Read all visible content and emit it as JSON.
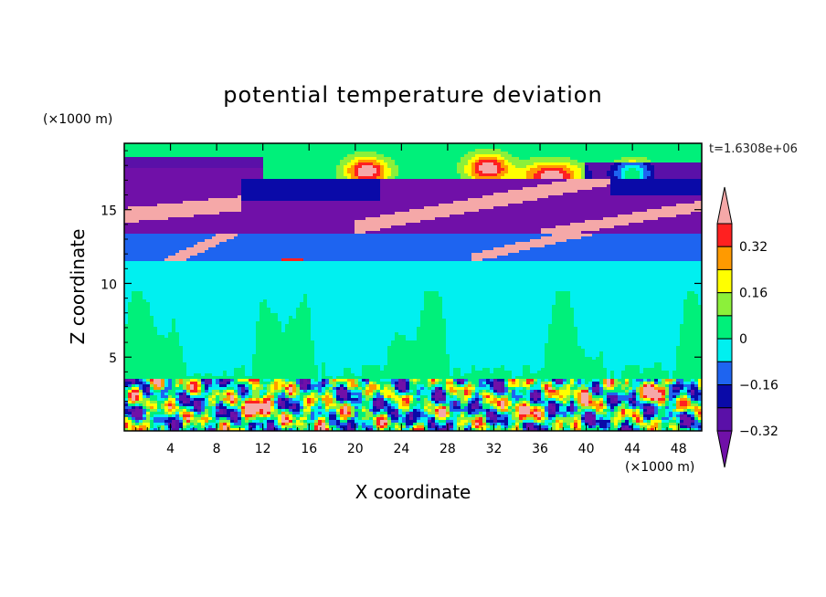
{
  "chart_data": {
    "type": "heatmap",
    "title": "potential temperature deviation",
    "xlabel": "X coordinate",
    "ylabel": "Z coordinate",
    "x_unit": "(×1000 m)",
    "y_unit": "(×1000 m)",
    "timestamp": "t=1.6308e+06",
    "xlim": [
      0,
      50
    ],
    "ylim": [
      0,
      19.5
    ],
    "x_ticks": [
      4,
      8,
      12,
      16,
      20,
      24,
      28,
      32,
      36,
      40,
      44,
      48
    ],
    "x_tick_labels": [
      "4",
      "8",
      "12",
      "16",
      "20",
      "24",
      "28",
      "32",
      "36",
      "40",
      "44",
      "48"
    ],
    "y_ticks": [
      5,
      10,
      15
    ],
    "y_tick_labels": [
      "5",
      "10",
      "15"
    ],
    "colorbar": {
      "levels": [
        -0.4,
        -0.32,
        -0.24,
        -0.16,
        -0.08,
        0,
        0.08,
        0.16,
        0.24,
        0.32,
        0.4
      ],
      "labeled_levels": [
        -0.32,
        -0.16,
        0,
        0.16,
        0.32
      ],
      "labels": [
        "-0.32",
        "-0.16",
        "0",
        "0.16",
        "0.32"
      ],
      "colors_low_to_high": [
        "#7010a8",
        "#5a10a8",
        "#0a0aa8",
        "#1e64f0",
        "#00f0f0",
        "#00f07a",
        "#8cf03a",
        "#ffff00",
        "#ff9a00",
        "#ff2020",
        "#f5a8a8"
      ],
      "under_color": "#7010a8",
      "over_color": "#f5a8a8"
    },
    "bands": [
      {
        "z": [
          0,
          3.5
        ],
        "description": "convective cells",
        "mean_level": 0
      },
      {
        "z": [
          3.5,
          9.5
        ],
        "level": 0
      },
      {
        "z": [
          9.5,
          11.5
        ],
        "level": 0
      },
      {
        "z": [
          11.5,
          13.3
        ],
        "level": -0.12
      },
      {
        "z": [
          13.3,
          17
        ],
        "level": -0.36
      },
      {
        "z": [
          17,
          19.5
        ],
        "level": 0.04
      }
    ]
  }
}
